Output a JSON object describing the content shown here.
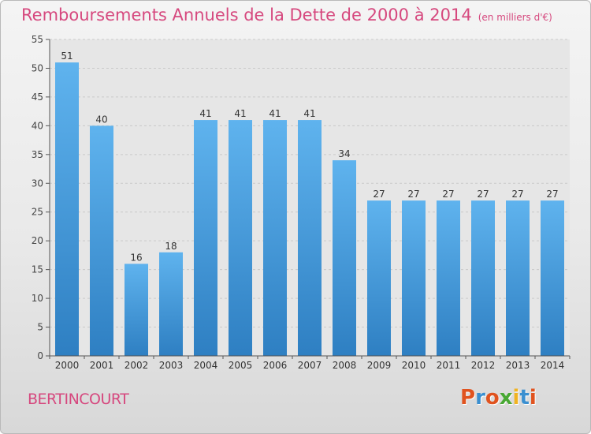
{
  "page": {
    "title": "Remboursements Annuels de la Dette de 2000 à 2014",
    "unit_note": "(en milliers d'€)",
    "commune": "BERTINCOURT",
    "logo": "Proxiti"
  },
  "colors": {
    "title": "#d6487e",
    "bar_top": "#5fb3ee",
    "bar_bottom": "#2e7fc2",
    "logo_letters": [
      "#e0531f",
      "#3a8fd0",
      "#e0531f",
      "#48a833",
      "#f0b321",
      "#3a8fd0",
      "#e0531f"
    ]
  },
  "chart_data": {
    "type": "bar",
    "title": "Remboursements Annuels de la Dette de 2000 à 2014",
    "subtitle": "(en milliers d'€)",
    "xlabel": "",
    "ylabel": "",
    "categories": [
      "2000",
      "2001",
      "2002",
      "2003",
      "2004",
      "2005",
      "2006",
      "2007",
      "2008",
      "2009",
      "2010",
      "2011",
      "2012",
      "2013",
      "2014"
    ],
    "values": [
      51,
      40,
      16,
      18,
      41,
      41,
      41,
      41,
      34,
      27,
      27,
      27,
      27,
      27,
      27
    ],
    "data_labels": [
      "51",
      "40",
      "16",
      "18",
      "41",
      "41",
      "41",
      "41",
      "34",
      "27",
      "27",
      "27",
      "27",
      "27",
      "27"
    ],
    "ylim": [
      0,
      55
    ],
    "yticks": [
      0,
      5,
      10,
      15,
      20,
      25,
      30,
      35,
      40,
      45,
      50,
      55
    ],
    "grid": true
  }
}
